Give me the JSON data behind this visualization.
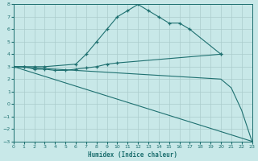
{
  "xlabel": "Humidex (Indice chaleur)",
  "bg_color": "#c8e8e8",
  "line_color": "#1e7070",
  "grid_color": "#aacccc",
  "xlim": [
    0,
    23
  ],
  "ylim": [
    -3,
    8
  ],
  "yticks": [
    -3,
    -2,
    -1,
    0,
    1,
    2,
    3,
    4,
    5,
    6,
    7,
    8
  ],
  "xticks": [
    0,
    1,
    2,
    3,
    4,
    5,
    6,
    7,
    8,
    9,
    10,
    11,
    12,
    13,
    14,
    15,
    16,
    17,
    18,
    19,
    20,
    21,
    22,
    23
  ],
  "lines": [
    {
      "x": [
        0,
        1,
        2,
        3,
        6,
        7,
        8,
        9,
        10,
        11,
        12,
        13,
        14,
        15,
        16,
        17,
        20
      ],
      "y": [
        3,
        3,
        3,
        3,
        3.2,
        4.0,
        5.0,
        6.0,
        7.0,
        7.5,
        8.0,
        7.5,
        7.0,
        6.5,
        6.5,
        6.0,
        4.0
      ],
      "marker": true
    },
    {
      "x": [
        0,
        1,
        2,
        3,
        4,
        5,
        6,
        7,
        8,
        9,
        10,
        20
      ],
      "y": [
        3,
        3,
        2.8,
        2.8,
        2.7,
        2.7,
        2.8,
        2.9,
        3.0,
        3.2,
        3.3,
        4.0
      ],
      "marker": true
    },
    {
      "x": [
        0,
        23
      ],
      "y": [
        3,
        -3
      ],
      "marker": false
    },
    {
      "x": [
        0,
        20,
        21,
        22,
        23
      ],
      "y": [
        3,
        2.0,
        1.3,
        -0.5,
        -3.0
      ],
      "marker": false
    }
  ]
}
